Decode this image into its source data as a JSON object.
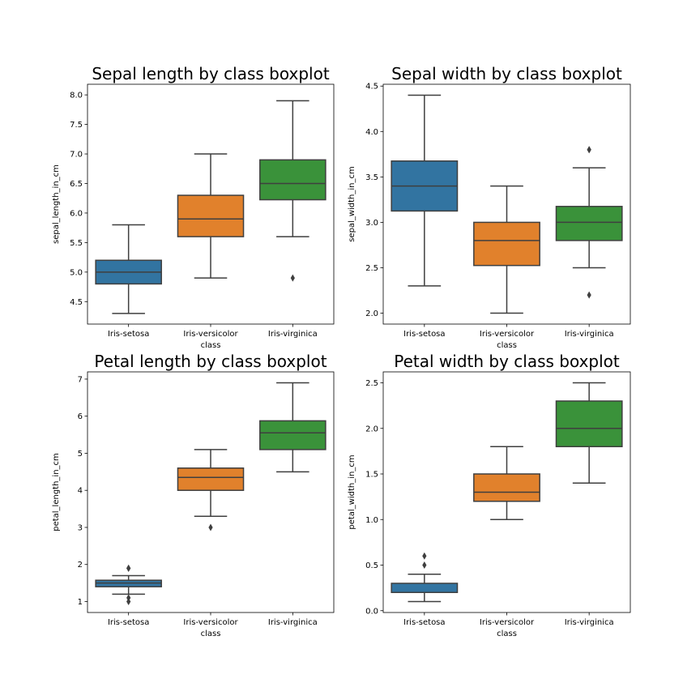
{
  "chart_data": [
    {
      "type": "box",
      "title": "Sepal length by class boxplot",
      "xlabel": "class",
      "ylabel": "sepal_length_in_cm",
      "ylim": [
        4.12,
        8.18
      ],
      "yticks": [
        4.5,
        5.0,
        5.5,
        6.0,
        6.5,
        7.0,
        7.5,
        8.0
      ],
      "tick_format": 1,
      "categories": [
        "Iris-setosa",
        "Iris-versicolor",
        "Iris-virginica"
      ],
      "colors": [
        "#3274a1",
        "#e1812c",
        "#3a923a"
      ],
      "boxes": [
        {
          "whisker_low": 4.3,
          "q1": 4.8,
          "median": 5.0,
          "q3": 5.2,
          "whisker_high": 5.8,
          "fliers": []
        },
        {
          "whisker_low": 4.9,
          "q1": 5.6,
          "median": 5.9,
          "q3": 6.3,
          "whisker_high": 7.0,
          "fliers": []
        },
        {
          "whisker_low": 5.6,
          "q1": 6.225,
          "median": 6.5,
          "q3": 6.9,
          "whisker_high": 7.9,
          "fliers": [
            4.9
          ]
        }
      ]
    },
    {
      "type": "box",
      "title": "Sepal width by class boxplot",
      "xlabel": "class",
      "ylabel": "sepal_width_in_cm",
      "ylim": [
        1.88,
        4.52
      ],
      "yticks": [
        2.0,
        2.5,
        3.0,
        3.5,
        4.0,
        4.5
      ],
      "tick_format": 1,
      "categories": [
        "Iris-setosa",
        "Iris-versicolor",
        "Iris-virginica"
      ],
      "colors": [
        "#3274a1",
        "#e1812c",
        "#3a923a"
      ],
      "boxes": [
        {
          "whisker_low": 2.3,
          "q1": 3.125,
          "median": 3.4,
          "q3": 3.675,
          "whisker_high": 4.4,
          "fliers": []
        },
        {
          "whisker_low": 2.0,
          "q1": 2.525,
          "median": 2.8,
          "q3": 3.0,
          "whisker_high": 3.4,
          "fliers": []
        },
        {
          "whisker_low": 2.5,
          "q1": 2.8,
          "median": 3.0,
          "q3": 3.175,
          "whisker_high": 3.6,
          "fliers": [
            3.8,
            3.8,
            2.2
          ]
        }
      ]
    },
    {
      "type": "box",
      "title": "Petal length by class boxplot",
      "xlabel": "class",
      "ylabel": "petal_length_in_cm",
      "ylim": [
        0.705,
        7.195
      ],
      "yticks": [
        1,
        2,
        3,
        4,
        5,
        6,
        7
      ],
      "tick_format": 0,
      "categories": [
        "Iris-setosa",
        "Iris-versicolor",
        "Iris-virginica"
      ],
      "colors": [
        "#3274a1",
        "#e1812c",
        "#3a923a"
      ],
      "boxes": [
        {
          "whisker_low": 1.2,
          "q1": 1.4,
          "median": 1.5,
          "q3": 1.575,
          "whisker_high": 1.7,
          "fliers": [
            1.9,
            1.9,
            1.1,
            1.0
          ]
        },
        {
          "whisker_low": 3.3,
          "q1": 4.0,
          "median": 4.35,
          "q3": 4.6,
          "whisker_high": 5.1,
          "fliers": [
            3.0
          ]
        },
        {
          "whisker_low": 4.5,
          "q1": 5.1,
          "median": 5.55,
          "q3": 5.875,
          "whisker_high": 6.9,
          "fliers": []
        }
      ]
    },
    {
      "type": "box",
      "title": "Petal width by class boxplot",
      "xlabel": "class",
      "ylabel": "petal_width_in_cm",
      "ylim": [
        -0.02,
        2.62
      ],
      "yticks": [
        0.0,
        0.5,
        1.0,
        1.5,
        2.0,
        2.5
      ],
      "tick_format": 1,
      "categories": [
        "Iris-setosa",
        "Iris-versicolor",
        "Iris-virginica"
      ],
      "colors": [
        "#3274a1",
        "#e1812c",
        "#3a923a"
      ],
      "boxes": [
        {
          "whisker_low": 0.1,
          "q1": 0.2,
          "median": 0.2,
          "q3": 0.3,
          "whisker_high": 0.4,
          "fliers": [
            0.6,
            0.5
          ]
        },
        {
          "whisker_low": 1.0,
          "q1": 1.2,
          "median": 1.3,
          "q3": 1.5,
          "whisker_high": 1.8,
          "fliers": []
        },
        {
          "whisker_low": 1.4,
          "q1": 1.8,
          "median": 2.0,
          "q3": 2.3,
          "whisker_high": 2.5,
          "fliers": []
        }
      ]
    }
  ]
}
